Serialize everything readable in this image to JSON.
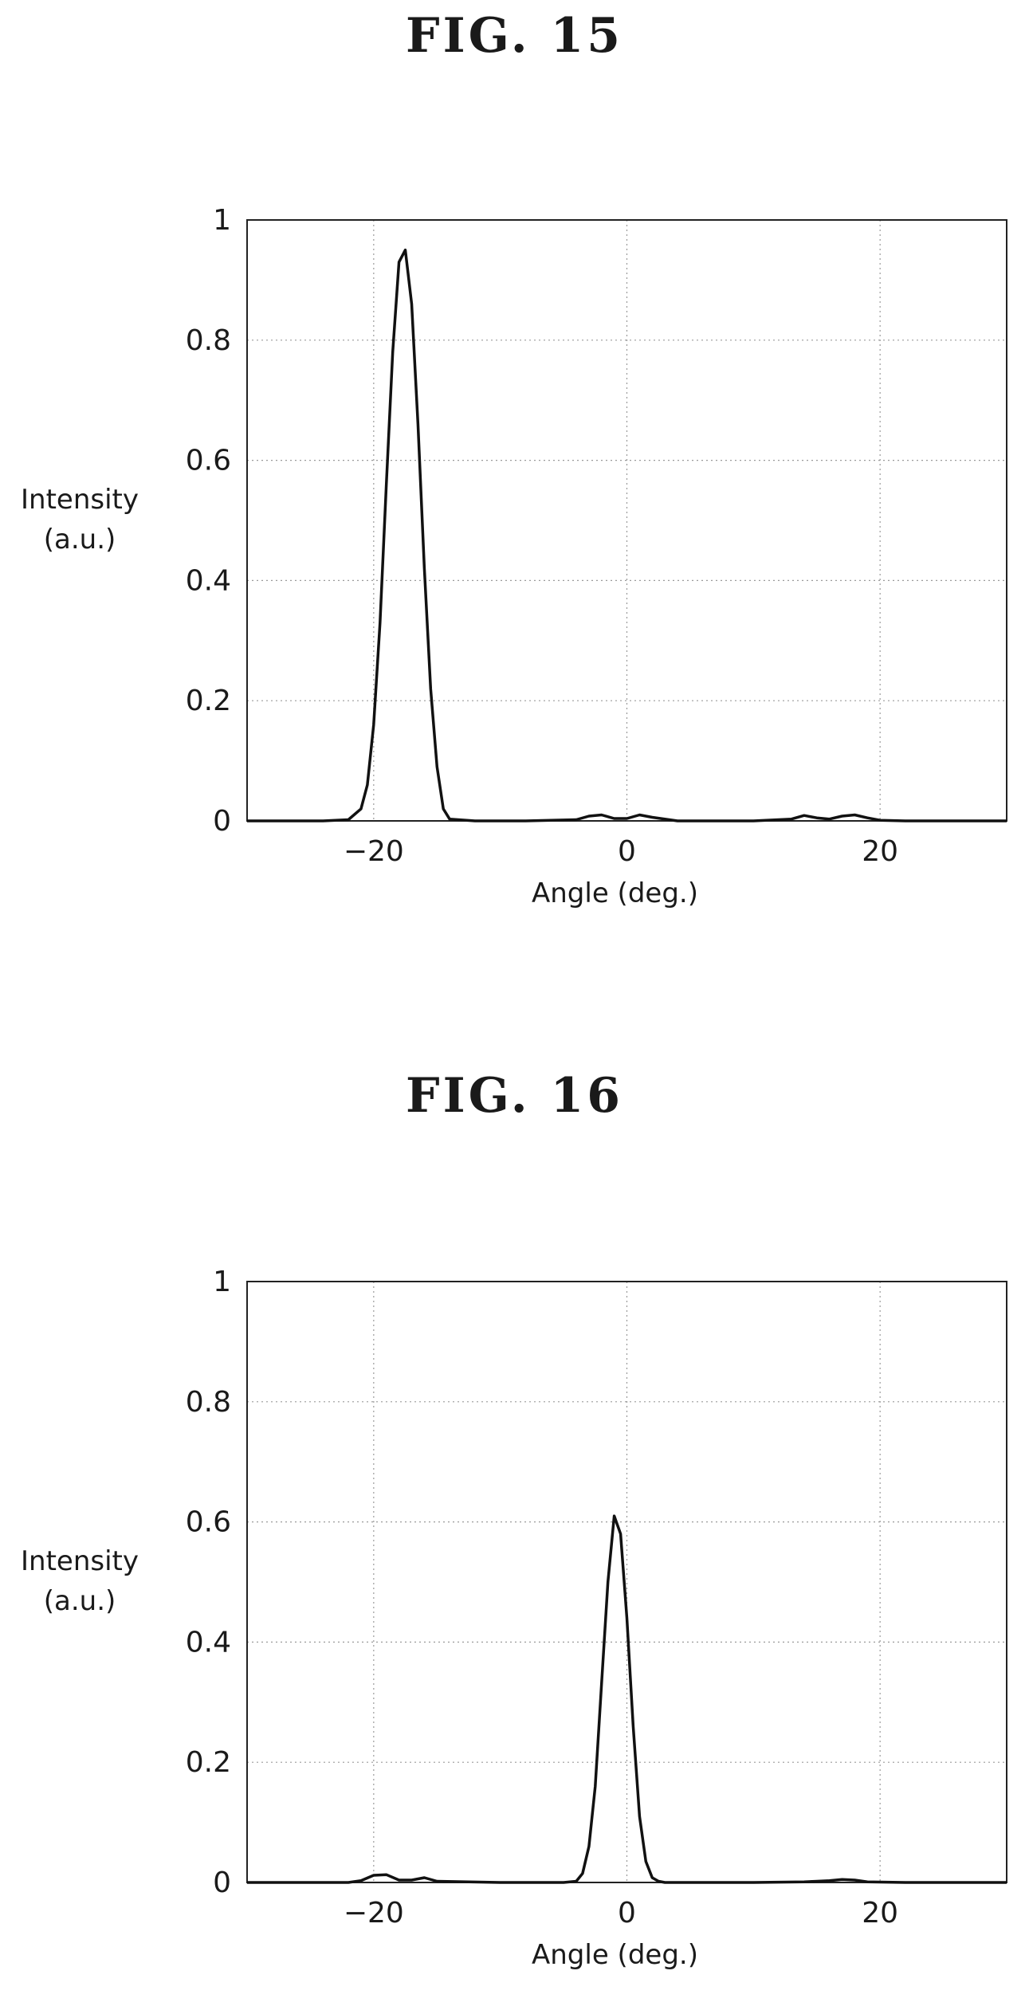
{
  "figures": [
    {
      "title": "FIG. 15"
    },
    {
      "title": "FIG. 16"
    }
  ],
  "chart_data": [
    {
      "type": "line",
      "xlabel": "Angle (deg.)",
      "ylabel_lines": [
        "Intensity",
        "(a.u.)"
      ],
      "xlim": [
        -30,
        30
      ],
      "ylim": [
        0,
        1
      ],
      "xticks": [
        -20,
        0,
        20
      ],
      "xtick_labels": [
        "−20",
        "0",
        "20"
      ],
      "yticks": [
        0,
        0.2,
        0.4,
        0.6,
        0.8,
        1
      ],
      "ytick_labels": [
        "0",
        "0.2",
        "0.4",
        "0.6",
        "0.8",
        "1"
      ],
      "grid": true,
      "series": [
        {
          "x": [
            -30,
            -24,
            -22,
            -21,
            -20.5,
            -20,
            -19.5,
            -19,
            -18.5,
            -18,
            -17.5,
            -17,
            -16.5,
            -16,
            -15.5,
            -15,
            -14.5,
            -14,
            -12,
            -8,
            -4,
            -3,
            -2,
            -1,
            0,
            1,
            2,
            4,
            10,
            13,
            14,
            15,
            16,
            17,
            18,
            19,
            20,
            22,
            26,
            30
          ],
          "y": [
            0,
            0,
            0.002,
            0.02,
            0.06,
            0.16,
            0.33,
            0.56,
            0.78,
            0.93,
            0.95,
            0.86,
            0.66,
            0.42,
            0.22,
            0.09,
            0.02,
            0.003,
            0,
            0,
            0.002,
            0.008,
            0.01,
            0.004,
            0.004,
            0.01,
            0.006,
            0,
            0,
            0.003,
            0.009,
            0.005,
            0.003,
            0.008,
            0.01,
            0.005,
            0.001,
            0,
            0,
            0
          ]
        }
      ]
    },
    {
      "type": "line",
      "xlabel": "Angle (deg.)",
      "ylabel_lines": [
        "Intensity",
        "(a.u.)"
      ],
      "xlim": [
        -30,
        30
      ],
      "ylim": [
        0,
        1
      ],
      "xticks": [
        -20,
        0,
        20
      ],
      "xtick_labels": [
        "−20",
        "0",
        "20"
      ],
      "yticks": [
        0,
        0.2,
        0.4,
        0.6,
        0.8,
        1
      ],
      "ytick_labels": [
        "0",
        "0.2",
        "0.4",
        "0.6",
        "0.8",
        "1"
      ],
      "grid": true,
      "series": [
        {
          "x": [
            -30,
            -22,
            -21,
            -20,
            -19,
            -18,
            -17,
            -16,
            -15,
            -10,
            -5,
            -4,
            -3.5,
            -3,
            -2.5,
            -2,
            -1.5,
            -1,
            -0.5,
            0,
            0.5,
            1,
            1.5,
            2,
            2.5,
            3,
            5,
            10,
            14,
            15,
            16,
            17,
            18,
            19,
            22,
            30
          ],
          "y": [
            0,
            0,
            0.003,
            0.012,
            0.013,
            0.004,
            0.004,
            0.008,
            0.002,
            0,
            0,
            0.002,
            0.015,
            0.06,
            0.16,
            0.33,
            0.5,
            0.61,
            0.58,
            0.44,
            0.26,
            0.11,
            0.035,
            0.008,
            0.002,
            0,
            0,
            0,
            0.001,
            0.002,
            0.003,
            0.005,
            0.004,
            0.001,
            0,
            0
          ]
        }
      ]
    }
  ]
}
